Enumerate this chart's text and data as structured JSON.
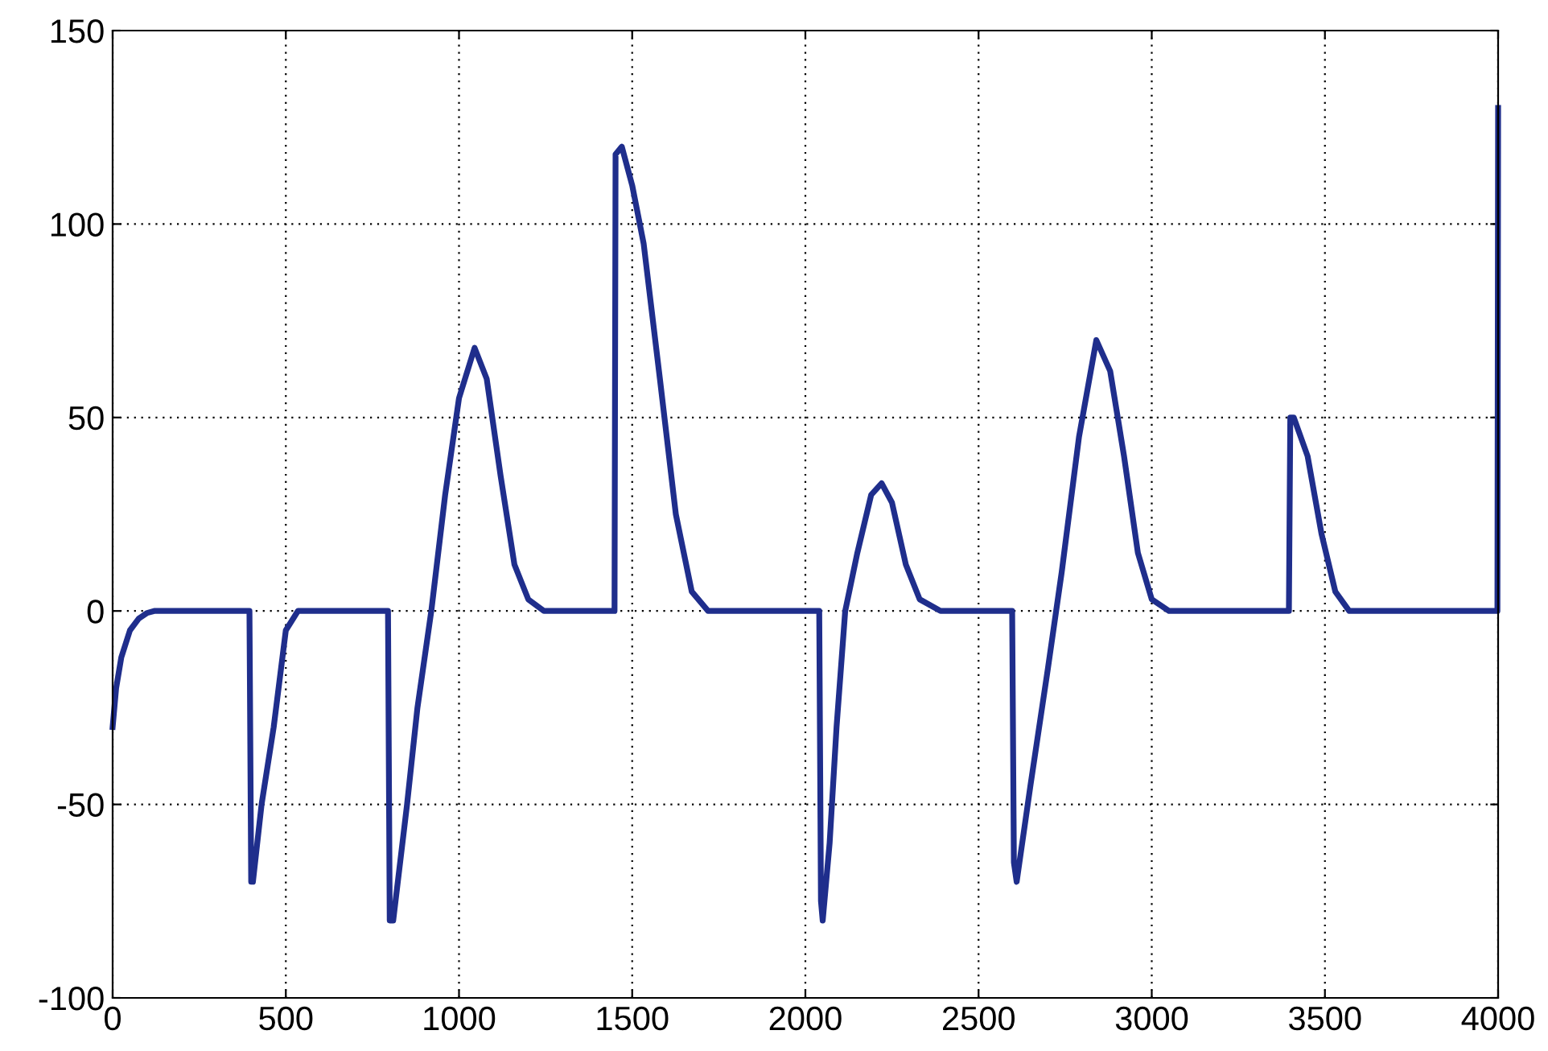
{
  "chart_data": {
    "type": "line",
    "xlim": [
      0,
      4000
    ],
    "ylim": [
      -100,
      150
    ],
    "xticks": [
      0,
      500,
      1000,
      1500,
      2000,
      2500,
      3000,
      3500,
      4000
    ],
    "yticks": [
      -100,
      -50,
      0,
      50,
      100,
      150
    ],
    "grid": true,
    "line_style": "solid",
    "marker": "none",
    "series": [
      {
        "color": "#1f2e8c",
        "x": [
          0,
          10,
          25,
          50,
          75,
          100,
          120,
          395,
          400,
          405,
          430,
          465,
          500,
          535,
          795,
          800,
          810,
          850,
          880,
          920,
          960,
          1000,
          1045,
          1080,
          1120,
          1160,
          1200,
          1245,
          1449,
          1452,
          1470,
          1500,
          1533,
          1580,
          1626,
          1672,
          1719,
          2040,
          2045,
          2050,
          2070,
          2090,
          2115,
          2150,
          2190,
          2220,
          2250,
          2290,
          2330,
          2390,
          2597,
          2602,
          2610,
          2650,
          2700,
          2740,
          2790,
          2840,
          2880,
          2920,
          2960,
          3000,
          3050,
          3396,
          3400,
          3410,
          3450,
          3490,
          3530,
          3570,
          3998,
          4000
        ],
        "values": [
          -30,
          -20,
          -12,
          -5,
          -2,
          -0.5,
          0,
          0,
          -70,
          -70,
          -50,
          -30,
          -5,
          0,
          0,
          -80,
          -80,
          -50,
          -25,
          0,
          30,
          55,
          68,
          60,
          35,
          12,
          3,
          0,
          0,
          118,
          120,
          110,
          95,
          60,
          25,
          5,
          0,
          0,
          -75,
          -80,
          -60,
          -30,
          0,
          15,
          30,
          33,
          28,
          12,
          3,
          0,
          0,
          -65,
          -70,
          -45,
          -15,
          10,
          45,
          70,
          62,
          40,
          15,
          3,
          0,
          0,
          50,
          50,
          40,
          20,
          5,
          0,
          0,
          130
        ]
      }
    ]
  }
}
